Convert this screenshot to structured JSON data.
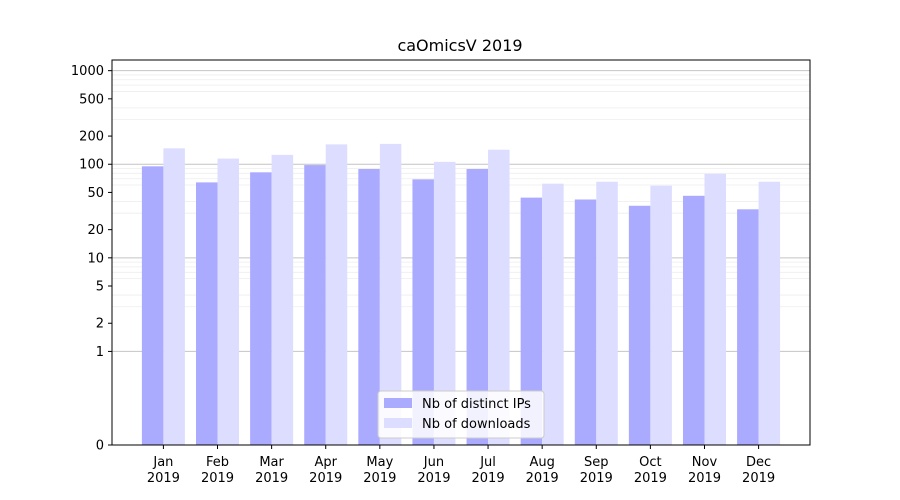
{
  "chart_data": {
    "type": "bar",
    "title": "caOmicsV 2019",
    "xlabel": "",
    "ylabel": "",
    "y_scale": "symlog",
    "ylim": [
      0,
      1300
    ],
    "y_ticks": [
      0,
      1,
      2,
      5,
      10,
      20,
      50,
      100,
      200,
      500,
      1000
    ],
    "y_tick_labels": [
      "0",
      "1",
      "2",
      "5",
      "10",
      "20",
      "50",
      "100",
      "200",
      "500",
      "1000"
    ],
    "grid": "horizontal",
    "legend_position": "lower-center",
    "categories": [
      [
        "Jan",
        "2019"
      ],
      [
        "Feb",
        "2019"
      ],
      [
        "Mar",
        "2019"
      ],
      [
        "Apr",
        "2019"
      ],
      [
        "May",
        "2019"
      ],
      [
        "Jun",
        "2019"
      ],
      [
        "Jul",
        "2019"
      ],
      [
        "Aug",
        "2019"
      ],
      [
        "Sep",
        "2019"
      ],
      [
        "Oct",
        "2019"
      ],
      [
        "Nov",
        "2019"
      ],
      [
        "Dec",
        "2019"
      ]
    ],
    "series": [
      {
        "name": "Nb of distinct IPs",
        "color": "#aaaaff",
        "values": [
          95,
          64,
          82,
          98,
          89,
          69,
          89,
          44,
          42,
          36,
          46,
          33
        ]
      },
      {
        "name": "Nb of downloads",
        "color": "#ddddff",
        "values": [
          148,
          115,
          126,
          163,
          165,
          106,
          143,
          62,
          65,
          59,
          79,
          65
        ]
      }
    ]
  }
}
